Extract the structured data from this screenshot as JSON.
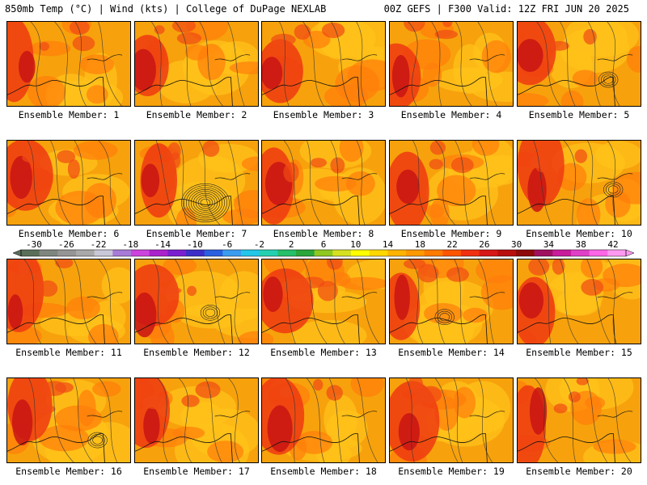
{
  "header": {
    "left_title": "850mb Temp (°C) | Wind (kts) | College of DuPage NEXLAB",
    "right_title": "00Z GEFS | F300 Valid: 12Z FRI JUN 20 2025"
  },
  "panels": [
    {
      "label": "Ensemble Member: 1"
    },
    {
      "label": "Ensemble Member: 2"
    },
    {
      "label": "Ensemble Member: 3"
    },
    {
      "label": "Ensemble Member: 4"
    },
    {
      "label": "Ensemble Member: 5"
    },
    {
      "label": "Ensemble Member: 6"
    },
    {
      "label": "Ensemble Member: 7"
    },
    {
      "label": "Ensemble Member: 8"
    },
    {
      "label": "Ensemble Member: 9"
    },
    {
      "label": "Ensemble Member: 10"
    },
    {
      "label": "Ensemble Member: 11"
    },
    {
      "label": "Ensemble Member: 12"
    },
    {
      "label": "Ensemble Member: 13"
    },
    {
      "label": "Ensemble Member: 14"
    },
    {
      "label": "Ensemble Member: 15"
    },
    {
      "label": "Ensemble Member: 16"
    },
    {
      "label": "Ensemble Member: 17"
    },
    {
      "label": "Ensemble Member: 18"
    },
    {
      "label": "Ensemble Member: 19"
    },
    {
      "label": "Ensemble Member: 20"
    }
  ],
  "colorbar": {
    "ticks": [
      "-30",
      "-26",
      "-22",
      "-18",
      "-14",
      "-10",
      "-6",
      "-2",
      "2",
      "6",
      "10",
      "14",
      "18",
      "22",
      "26",
      "30",
      "34",
      "38",
      "42"
    ],
    "colors": [
      "#5a6e5a",
      "#7f857f",
      "#959595",
      "#a9a9a9",
      "#c8c8d8",
      "#a77bd6",
      "#cc44dd",
      "#aa22cc",
      "#7a1fd0",
      "#3c2dc8",
      "#2a5fe0",
      "#3a9cf0",
      "#21c6e8",
      "#25d0b0",
      "#26bf6a",
      "#2aa63a",
      "#8fc821",
      "#d6e021",
      "#ffff00",
      "#ffd700",
      "#ffb300",
      "#ff9900",
      "#ff7a00",
      "#ff5500",
      "#f03010",
      "#d81818",
      "#b80e0e",
      "#8e0a0a",
      "#a01060",
      "#c81c9c",
      "#e040c8",
      "#ff66e6",
      "#ff99f0"
    ]
  }
}
